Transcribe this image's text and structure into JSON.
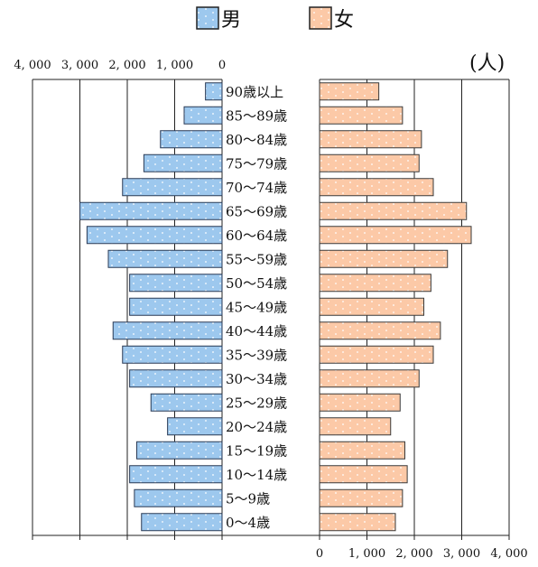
{
  "chart_data": {
    "type": "bar",
    "subtype": "population-pyramid",
    "unit_label": "(人)",
    "categories": [
      "90歳以上",
      "85～89歳",
      "80～84歳",
      "75～79歳",
      "70～74歳",
      "65～69歳",
      "60～64歳",
      "55～59歳",
      "50～54歳",
      "45～49歳",
      "40～44歳",
      "35～39歳",
      "30～34歳",
      "25～29歳",
      "20～24歳",
      "15～19歳",
      "10～14歳",
      "5～9歳",
      "0～4歳"
    ],
    "series": [
      {
        "name": "男",
        "color": "#9dc8ee",
        "values": [
          350,
          800,
          1300,
          1650,
          2100,
          3000,
          2850,
          2400,
          1950,
          1950,
          2300,
          2100,
          1950,
          1500,
          1150,
          1800,
          1950,
          1850,
          1700
        ]
      },
      {
        "name": "女",
        "color": "#fcc9a7",
        "values": [
          1250,
          1750,
          2150,
          2100,
          2400,
          3100,
          3200,
          2700,
          2350,
          2200,
          2550,
          2400,
          2100,
          1700,
          1500,
          1800,
          1850,
          1750,
          1600
        ]
      }
    ],
    "x_axis_left": {
      "ticks": [
        4000,
        3000,
        2000,
        1000,
        0
      ],
      "tick_labels": [
        "4, 000",
        "3, 000",
        "2, 000",
        "1, 000",
        "0"
      ]
    },
    "x_axis_right": {
      "ticks": [
        0,
        1000,
        2000,
        3000,
        4000
      ],
      "tick_labels": [
        "0",
        "1, 000",
        "2, 000",
        "3, 000",
        "4, 000"
      ]
    },
    "xlim": [
      0,
      4000
    ],
    "grid": true,
    "legend": "top"
  }
}
